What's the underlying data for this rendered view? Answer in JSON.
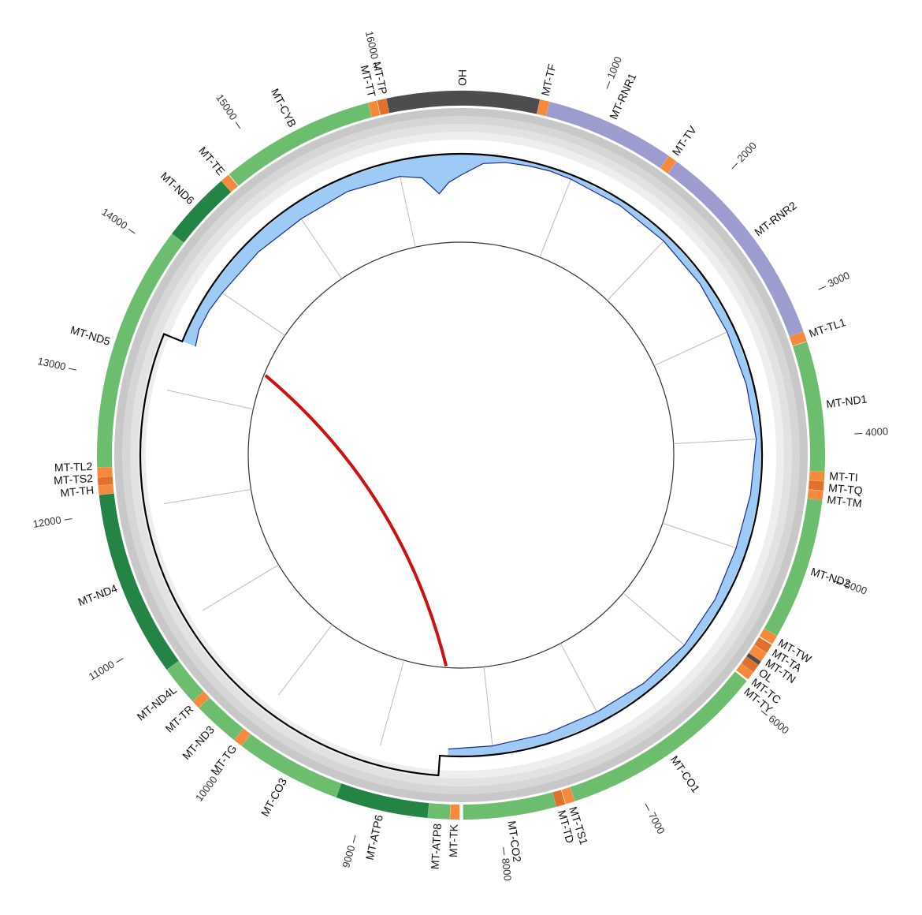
{
  "chart_data": {
    "type": "circular-genome",
    "xlim": [
      0,
      16569
    ],
    "xticks": [
      1000,
      2000,
      3000,
      4000,
      5000,
      6000,
      7000,
      8000,
      9000,
      10000,
      11000,
      12000,
      13000,
      14000,
      15000,
      16000
    ],
    "genes": [
      {
        "name": "OH",
        "start": 16024,
        "end": 576,
        "color": "#4d4d4d"
      },
      {
        "name": "MT-TF",
        "start": 577,
        "end": 647,
        "color": "#f58a3c"
      },
      {
        "name": "MT-RNR1",
        "start": 648,
        "end": 1601,
        "color": "#9c9ccf"
      },
      {
        "name": "MT-TV",
        "start": 1602,
        "end": 1670,
        "color": "#f58a3c"
      },
      {
        "name": "MT-RNR2",
        "start": 1671,
        "end": 3229,
        "color": "#9c9ccf"
      },
      {
        "name": "MT-TL1",
        "start": 3230,
        "end": 3304,
        "color": "#f58a3c"
      },
      {
        "name": "MT-ND1",
        "start": 3307,
        "end": 4262,
        "color": "#6cbd6e"
      },
      {
        "name": "MT-TI",
        "start": 4263,
        "end": 4331,
        "color": "#f58a3c"
      },
      {
        "name": "MT-TQ",
        "start": 4332,
        "end": 4400,
        "color": "#e0702a"
      },
      {
        "name": "MT-TM",
        "start": 4402,
        "end": 4469,
        "color": "#f58a3c"
      },
      {
        "name": "MT-ND2",
        "start": 4470,
        "end": 5511,
        "color": "#6cbd6e"
      },
      {
        "name": "MT-TW",
        "start": 5512,
        "end": 5579,
        "color": "#f58a3c"
      },
      {
        "name": "MT-TA",
        "start": 5587,
        "end": 5655,
        "color": "#e0702a"
      },
      {
        "name": "MT-TN",
        "start": 5657,
        "end": 5729,
        "color": "#f58a3c"
      },
      {
        "name": "OL",
        "start": 5730,
        "end": 5760,
        "color": "#4d4d4d"
      },
      {
        "name": "MT-TC",
        "start": 5761,
        "end": 5826,
        "color": "#e0702a"
      },
      {
        "name": "MT-TY",
        "start": 5827,
        "end": 5891,
        "color": "#f58a3c"
      },
      {
        "name": "MT-CO1",
        "start": 5904,
        "end": 7445,
        "color": "#6cbd6e"
      },
      {
        "name": "MT-TS1",
        "start": 7446,
        "end": 7514,
        "color": "#f58a3c"
      },
      {
        "name": "MT-TD",
        "start": 7518,
        "end": 7585,
        "color": "#e0702a"
      },
      {
        "name": "MT-CO2",
        "start": 7586,
        "end": 8269,
        "color": "#6cbd6e"
      },
      {
        "name": "MT-TK",
        "start": 8295,
        "end": 8364,
        "color": "#f58a3c"
      },
      {
        "name": "MT-ATP8",
        "start": 8366,
        "end": 8526,
        "color": "#6cbd6e"
      },
      {
        "name": "MT-ATP6",
        "start": 8527,
        "end": 9207,
        "color": "#238445"
      },
      {
        "name": "MT-CO3",
        "start": 9208,
        "end": 9990,
        "color": "#6cbd6e"
      },
      {
        "name": "MT-TG",
        "start": 9991,
        "end": 10058,
        "color": "#f58a3c"
      },
      {
        "name": "MT-ND3",
        "start": 10059,
        "end": 10404,
        "color": "#6cbd6e"
      },
      {
        "name": "MT-TR",
        "start": 10405,
        "end": 10469,
        "color": "#f58a3c"
      },
      {
        "name": "MT-ND4L",
        "start": 10470,
        "end": 10766,
        "color": "#6cbd6e"
      },
      {
        "name": "MT-ND4",
        "start": 10767,
        "end": 12137,
        "color": "#238445"
      },
      {
        "name": "MT-TH",
        "start": 12138,
        "end": 12206,
        "color": "#f58a3c"
      },
      {
        "name": "MT-TS2",
        "start": 12207,
        "end": 12265,
        "color": "#e0702a"
      },
      {
        "name": "MT-TL2",
        "start": 12266,
        "end": 12336,
        "color": "#f58a3c"
      },
      {
        "name": "MT-ND5",
        "start": 12337,
        "end": 14148,
        "color": "#6cbd6e"
      },
      {
        "name": "MT-ND6",
        "start": 14149,
        "end": 14673,
        "color": "#238445"
      },
      {
        "name": "MT-TE",
        "start": 14674,
        "end": 14742,
        "color": "#f58a3c"
      },
      {
        "name": "MT-CYB",
        "start": 14747,
        "end": 15887,
        "color": "#6cbd6e"
      },
      {
        "name": "MT-TT",
        "start": 15888,
        "end": 15953,
        "color": "#f58a3c"
      },
      {
        "name": "MT-TP",
        "start": 15956,
        "end": 16023,
        "color": "#e0702a"
      }
    ],
    "coverage": {
      "color": "#9dcbf5",
      "line_color": "#1a2a8c",
      "ylim": [
        0,
        120
      ],
      "x": [
        0,
        200,
        400,
        600,
        800,
        1000,
        1500,
        2000,
        2500,
        3000,
        3500,
        4000,
        4500,
        5000,
        5500,
        6000,
        6500,
        7000,
        7500,
        8000,
        8400,
        10000,
        13450,
        13600,
        13800,
        14000,
        14500,
        15000,
        15500,
        16000,
        16200,
        16350,
        16450,
        16569
      ],
      "values": [
        60,
        25,
        15,
        12,
        10,
        12,
        15,
        18,
        20,
        22,
        20,
        15,
        25,
        30,
        25,
        22,
        25,
        30,
        28,
        25,
        20,
        null,
        40,
        30,
        30,
        35,
        40,
        45,
        40,
        45,
        60,
        110,
        80,
        60
      ]
    },
    "deletion": {
      "start": 8470,
      "end": 13447,
      "color": "#cc1111"
    }
  }
}
